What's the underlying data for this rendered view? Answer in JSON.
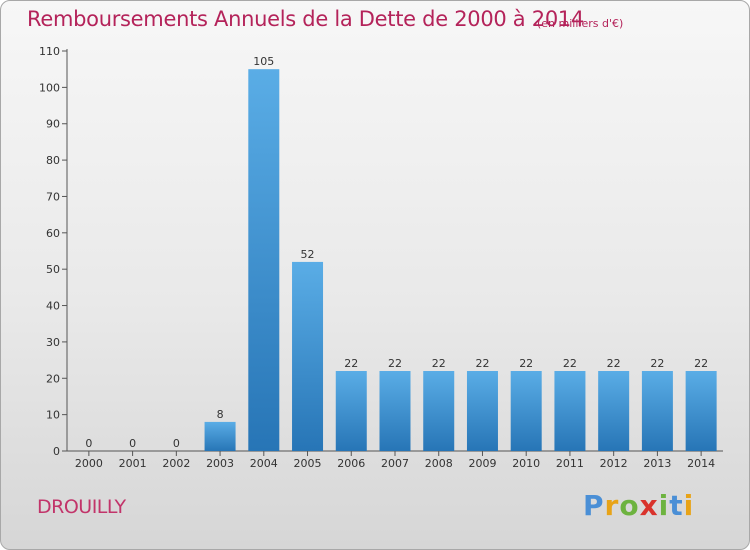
{
  "header": {
    "title": "Remboursements Annuels de la Dette de 2000 à 2014",
    "unit": "(en milliers d'€)"
  },
  "footer": {
    "place": "DROUILLY",
    "logo_letters": [
      "P",
      "r",
      "o",
      "x",
      "i",
      "t",
      "i"
    ],
    "logo_colors": [
      "#4a8fd6",
      "#e8a317",
      "#6db33f",
      "#d9332c",
      "#6db33f",
      "#4a8fd6",
      "#e8a317"
    ]
  },
  "chart_data": {
    "type": "bar",
    "title": "Remboursements Annuels de la Dette de 2000 à 2014",
    "xlabel": "",
    "ylabel": "",
    "categories": [
      "2000",
      "2001",
      "2002",
      "2003",
      "2004",
      "2005",
      "2006",
      "2007",
      "2008",
      "2009",
      "2010",
      "2011",
      "2012",
      "2013",
      "2014"
    ],
    "values": [
      0,
      0,
      0,
      8,
      105,
      52,
      22,
      22,
      22,
      22,
      22,
      22,
      22,
      22,
      22
    ],
    "data_labels": [
      "0",
      "0",
      "0",
      "8",
      "105",
      "52",
      "22",
      "22",
      "22",
      "22",
      "22",
      "22",
      "22",
      "22",
      "22"
    ],
    "ylim": [
      0,
      110
    ],
    "yticks": [
      0,
      10,
      20,
      30,
      40,
      50,
      60,
      70,
      80,
      90,
      100,
      110
    ],
    "grid": false,
    "legend": "none",
    "bar_color_light": "#5aade6",
    "bar_color_dark": "#2775b6",
    "axis_color": "#555555"
  }
}
